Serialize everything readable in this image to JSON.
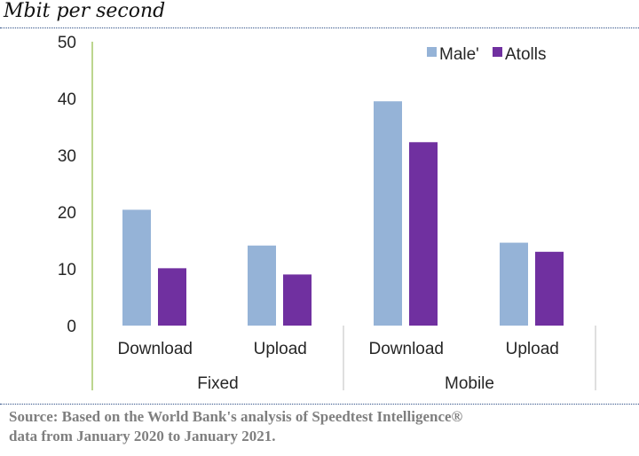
{
  "header": {
    "unit_label": "Mbit per second"
  },
  "footer": {
    "source_line_1": "Source: Based on the World Bank's analysis of Speedtest Intelligence®",
    "source_line_2": "data from January 2020 to January 2021."
  },
  "colors": {
    "male": "#95b3d7",
    "atolls": "#7030a0",
    "axis": "#a6c96a",
    "divider": "#bfbfbf",
    "rule": "#2e4f86"
  },
  "chart_data": {
    "type": "bar",
    "title": "",
    "ylabel": "Mbit per second",
    "xlabel": "",
    "ylim": [
      0,
      50
    ],
    "yticks": [
      0,
      10,
      20,
      30,
      40,
      50
    ],
    "grid": false,
    "legend_position": "top-right",
    "groups": [
      {
        "label": "Fixed",
        "categories": [
          "Download",
          "Upload"
        ]
      },
      {
        "label": "Mobile",
        "categories": [
          "Download",
          "Upload"
        ]
      }
    ],
    "categories": [
      "Download",
      "Upload",
      "Download",
      "Upload"
    ],
    "series": [
      {
        "name": "Male'",
        "color": "#95b3d7",
        "values": [
          20.4,
          14.1,
          39.5,
          14.6
        ]
      },
      {
        "name": "Atolls",
        "color": "#7030a0",
        "values": [
          10.1,
          9.0,
          32.3,
          13.0
        ]
      }
    ]
  }
}
